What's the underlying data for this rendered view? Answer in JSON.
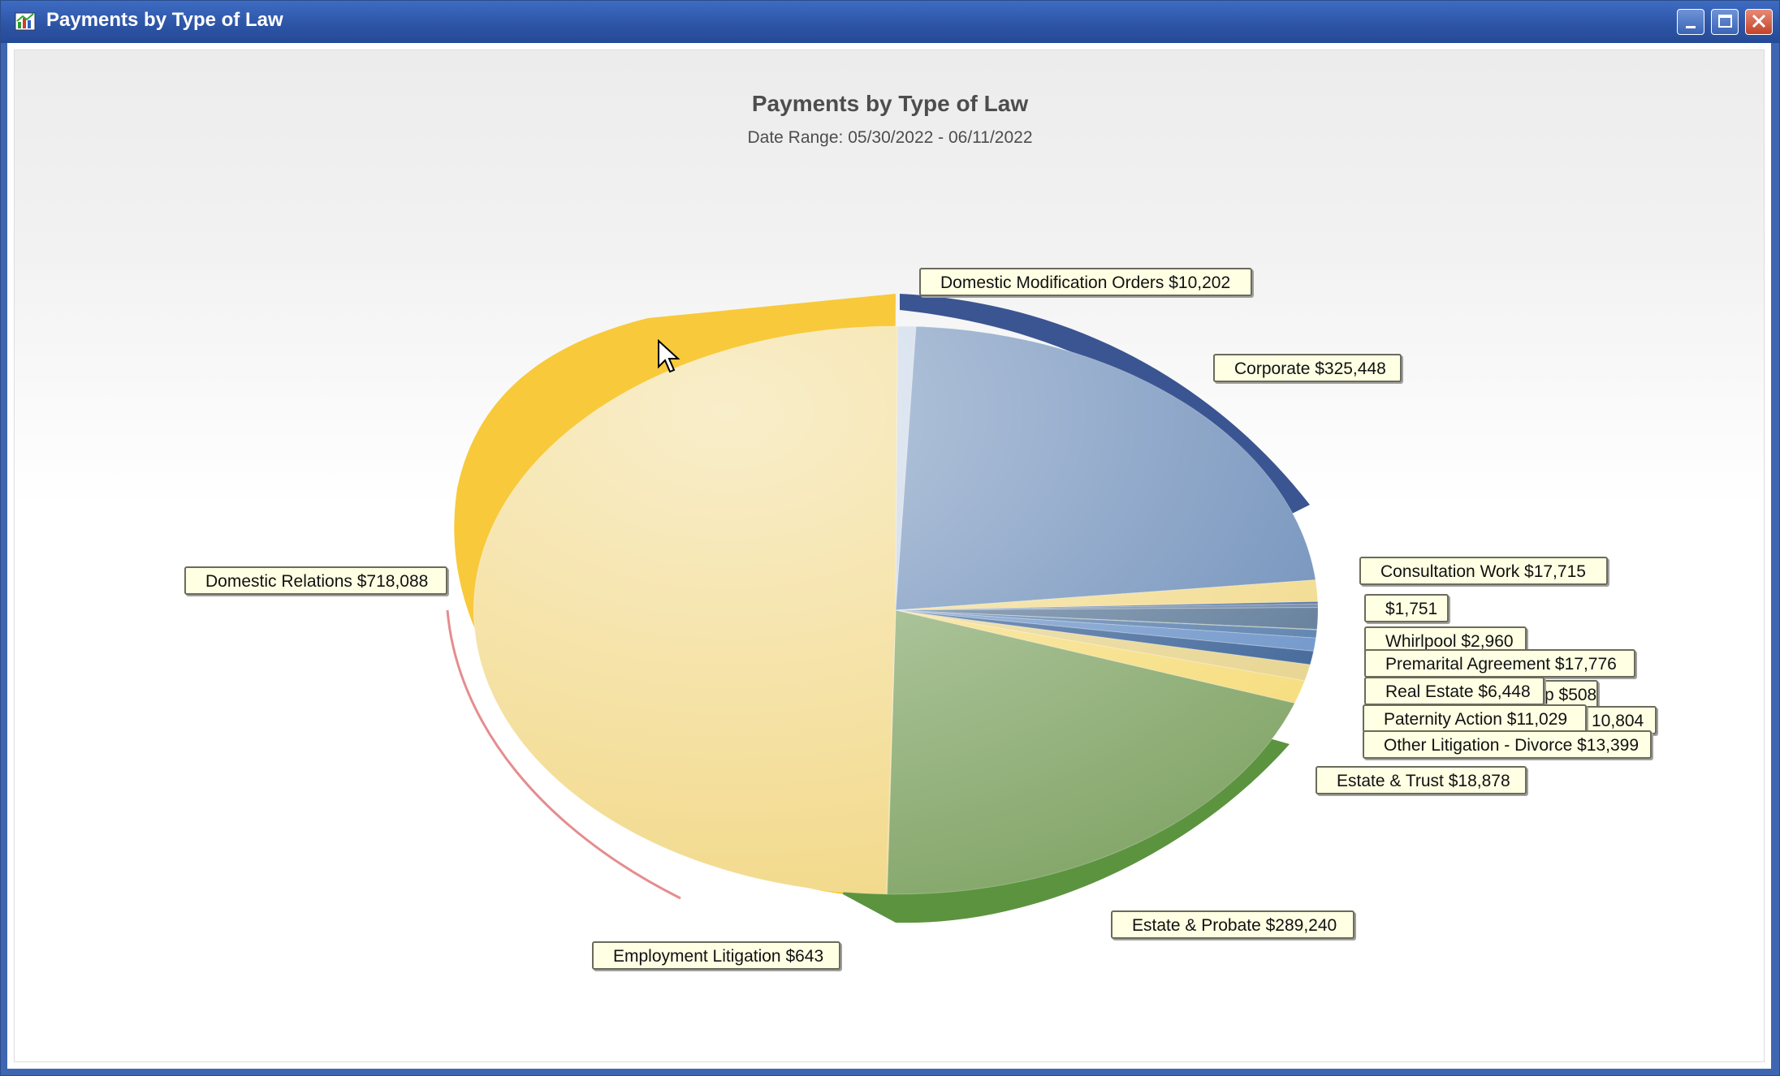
{
  "window": {
    "title": "Payments by Type of Law",
    "icon": "chart-app-icon",
    "controls": [
      "minimize-icon",
      "maximize-icon",
      "close-icon"
    ]
  },
  "chart_data": {
    "type": "pie",
    "title": "Payments by Type of Law",
    "subtitle": "Date Range: 05/30/2022 - 06/11/2022",
    "slices": [
      {
        "name": "Domestic Modification Orders",
        "label": "Domestic Modification Orders $10,202",
        "value": 10202,
        "color": "#c5d3e6"
      },
      {
        "name": "Corporate",
        "label": "Corporate $325,448",
        "value": 325448,
        "color": "#6f8fba"
      },
      {
        "name": "Consultation Work",
        "label": "Consultation Work $17,715",
        "value": 17715,
        "color": "#f2db8e"
      },
      {
        "name": "",
        "label": "$1,751",
        "value": 1751,
        "color": "#4b6c9e"
      },
      {
        "name": "Whirlpool",
        "label": "Whirlpool $2,960",
        "value": 2960,
        "color": "#6f88a8"
      },
      {
        "name": "Premarital Agreement",
        "label": "Premarital Agreement $17,776",
        "value": 17776,
        "color": "#5f7b99"
      },
      {
        "name": "",
        "label": "p $508",
        "value": 508,
        "color": "#7ea35c"
      },
      {
        "name": "Real Estate",
        "label": "Real Estate $6,448",
        "value": 6448,
        "color": "#5a7fae"
      },
      {
        "name": "",
        "label": "10,804",
        "value": 10804,
        "color": "#6e95c9"
      },
      {
        "name": "Paternity Action",
        "label": "Paternity Action $11,029",
        "value": 11029,
        "color": "#3f6598"
      },
      {
        "name": "Other Litigation - Divorce",
        "label": "Other Litigation - Divorce $13,399",
        "value": 13399,
        "color": "#e7d48f"
      },
      {
        "name": "Estate & Trust",
        "label": "Estate & Trust $18,878",
        "value": 18878,
        "color": "#f6dd7d"
      },
      {
        "name": "Estate & Probate",
        "label": "Estate & Probate $289,240",
        "value": 289240,
        "color": "#86a86c"
      },
      {
        "name": "Employment Litigation",
        "label": "Employment Litigation $643",
        "value": 643,
        "color": "#f4d489"
      },
      {
        "name": "Domestic Relations",
        "label": "Domestic Relations $718,088",
        "value": 718088,
        "color": "#f2d98a"
      }
    ],
    "legend": "none",
    "style": "3d-pie"
  }
}
